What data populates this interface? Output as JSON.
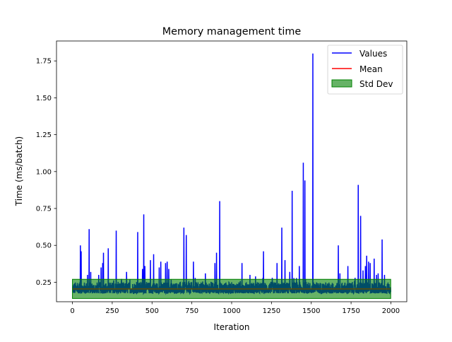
{
  "chart_data": {
    "type": "line",
    "title": "Memory management time",
    "xlabel": "Iteration",
    "ylabel": "Time (ms/batch)",
    "xlim": [
      -100,
      2100
    ],
    "ylim": [
      0.118,
      1.885
    ],
    "xticks": [
      0,
      250,
      500,
      750,
      1000,
      1250,
      1500,
      1750,
      2000
    ],
    "xtick_labels": [
      "0",
      "250",
      "500",
      "750",
      "1000",
      "1250",
      "1500",
      "1750",
      "2000"
    ],
    "yticks": [
      0.25,
      0.5,
      0.75,
      1.0,
      1.25,
      1.5,
      1.75
    ],
    "ytick_labels": [
      "0.25",
      "0.50",
      "0.75",
      "1.00",
      "1.25",
      "1.50",
      "1.75"
    ],
    "grid": false,
    "legend_position": "top-right",
    "series": [
      {
        "name": "Values",
        "color": "#0000ff",
        "kind": "line",
        "baseline": 0.205,
        "noise_low": 0.175,
        "noise_high": 0.26,
        "n_points": 2000,
        "spikes": [
          [
            50,
            0.5
          ],
          [
            55,
            0.46
          ],
          [
            95,
            0.3
          ],
          [
            105,
            0.61
          ],
          [
            115,
            0.32
          ],
          [
            165,
            0.3
          ],
          [
            180,
            0.35
          ],
          [
            190,
            0.38
          ],
          [
            195,
            0.45
          ],
          [
            225,
            0.48
          ],
          [
            275,
            0.6
          ],
          [
            340,
            0.32
          ],
          [
            410,
            0.59
          ],
          [
            440,
            0.34
          ],
          [
            448,
            0.71
          ],
          [
            455,
            0.36
          ],
          [
            490,
            0.4
          ],
          [
            510,
            0.44
          ],
          [
            545,
            0.35
          ],
          [
            555,
            0.39
          ],
          [
            585,
            0.38
          ],
          [
            595,
            0.39
          ],
          [
            605,
            0.34
          ],
          [
            700,
            0.62
          ],
          [
            715,
            0.57
          ],
          [
            760,
            0.39
          ],
          [
            835,
            0.31
          ],
          [
            895,
            0.38
          ],
          [
            905,
            0.45
          ],
          [
            925,
            0.8
          ],
          [
            1065,
            0.38
          ],
          [
            1115,
            0.3
          ],
          [
            1150,
            0.29
          ],
          [
            1200,
            0.46
          ],
          [
            1255,
            0.28
          ],
          [
            1285,
            0.38
          ],
          [
            1315,
            0.62
          ],
          [
            1335,
            0.4
          ],
          [
            1365,
            0.32
          ],
          [
            1380,
            0.87
          ],
          [
            1425,
            0.36
          ],
          [
            1450,
            1.06
          ],
          [
            1460,
            0.94
          ],
          [
            1510,
            1.8
          ],
          [
            1670,
            0.5
          ],
          [
            1680,
            0.31
          ],
          [
            1730,
            0.36
          ],
          [
            1775,
            0.28
          ],
          [
            1795,
            0.91
          ],
          [
            1810,
            0.7
          ],
          [
            1825,
            0.33
          ],
          [
            1840,
            0.36
          ],
          [
            1848,
            0.43
          ],
          [
            1860,
            0.39
          ],
          [
            1870,
            0.38
          ],
          [
            1895,
            0.41
          ],
          [
            1910,
            0.3
          ],
          [
            1920,
            0.31
          ],
          [
            1945,
            0.54
          ],
          [
            1960,
            0.3
          ]
        ]
      },
      {
        "name": "Mean",
        "color": "#ff0000",
        "kind": "hline",
        "value": 0.205
      },
      {
        "name": "Std Dev",
        "color": "#008000",
        "kind": "band",
        "lower": 0.14,
        "upper": 0.27,
        "alpha": 0.6
      }
    ]
  }
}
